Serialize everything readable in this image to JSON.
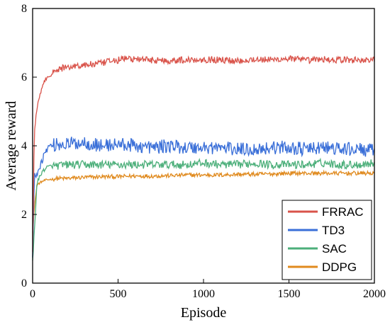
{
  "chart_data": {
    "type": "line",
    "title": "",
    "xlabel": "Episode",
    "ylabel": "Average reward",
    "xlim": [
      0,
      2000
    ],
    "ylim": [
      0,
      8
    ],
    "xticks": [
      0,
      500,
      1000,
      1500,
      2000
    ],
    "yticks": [
      0,
      2,
      4,
      6,
      8
    ],
    "grid": false,
    "legend_position": "bottom-right",
    "series": [
      {
        "name": "FRRAC",
        "color": "#d9534a",
        "x": [
          0,
          10,
          25,
          50,
          75,
          100,
          150,
          200,
          300,
          400,
          500,
          550,
          600,
          700,
          800,
          900,
          1000,
          1100,
          1200,
          1300,
          1400,
          1500,
          1600,
          1700,
          1800,
          1900,
          2000
        ],
        "y": [
          0.9,
          4.4,
          5.1,
          5.6,
          5.95,
          6.05,
          6.22,
          6.3,
          6.35,
          6.4,
          6.5,
          6.55,
          6.52,
          6.5,
          6.48,
          6.5,
          6.52,
          6.5,
          6.48,
          6.52,
          6.5,
          6.55,
          6.48,
          6.52,
          6.5,
          6.5,
          6.5
        ],
        "noise": 0.1
      },
      {
        "name": "TD3",
        "color": "#3a6fd8",
        "x": [
          0,
          10,
          25,
          50,
          75,
          100,
          150,
          200,
          300,
          400,
          500,
          600,
          700,
          800,
          900,
          1000,
          1100,
          1200,
          1300,
          1400,
          1500,
          1600,
          1700,
          1800,
          1900,
          2000
        ],
        "y": [
          0.75,
          3.1,
          3.2,
          3.5,
          3.85,
          4.0,
          4.05,
          4.05,
          4.1,
          4.0,
          4.05,
          4.0,
          3.95,
          4.0,
          3.95,
          3.95,
          3.95,
          3.9,
          3.9,
          3.95,
          3.95,
          3.9,
          3.95,
          3.9,
          3.9,
          3.85
        ],
        "noise": 0.2
      },
      {
        "name": "SAC",
        "color": "#4caf7a",
        "x": [
          0,
          10,
          25,
          50,
          75,
          100,
          150,
          200,
          300,
          400,
          500,
          600,
          700,
          800,
          900,
          1000,
          1100,
          1200,
          1300,
          1400,
          1500,
          1600,
          1700,
          1800,
          1900,
          2000
        ],
        "y": [
          0.6,
          1.5,
          2.9,
          3.2,
          3.35,
          3.4,
          3.42,
          3.45,
          3.45,
          3.45,
          3.45,
          3.45,
          3.45,
          3.45,
          3.45,
          3.5,
          3.45,
          3.45,
          3.5,
          3.45,
          3.45,
          3.45,
          3.5,
          3.45,
          3.45,
          3.5
        ],
        "noise": 0.12
      },
      {
        "name": "DDPG",
        "color": "#e08a1e",
        "x": [
          0,
          10,
          25,
          50,
          75,
          100,
          150,
          200,
          300,
          400,
          500,
          600,
          700,
          800,
          900,
          1000,
          1100,
          1200,
          1300,
          1400,
          1500,
          1600,
          1700,
          1800,
          1900,
          2000
        ],
        "y": [
          1.5,
          2.2,
          2.85,
          2.95,
          3.0,
          3.02,
          3.05,
          3.05,
          3.08,
          3.1,
          3.1,
          3.12,
          3.12,
          3.13,
          3.15,
          3.15,
          3.15,
          3.17,
          3.17,
          3.18,
          3.2,
          3.2,
          3.2,
          3.2,
          3.2,
          3.2
        ],
        "noise": 0.06
      }
    ]
  }
}
